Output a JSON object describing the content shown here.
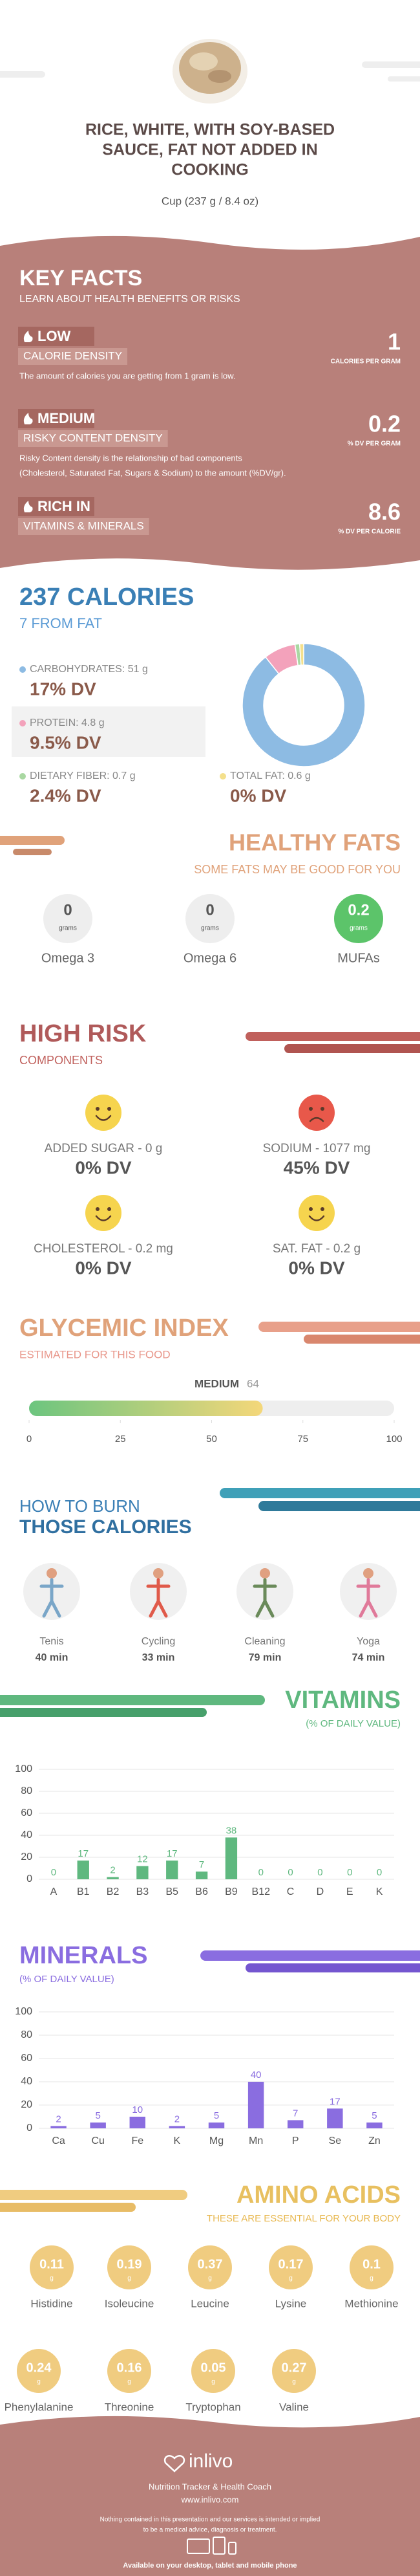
{
  "header": {
    "title_lines": [
      "RICE, WHITE, WITH SOY-BASED",
      "SAUCE, FAT NOT ADDED IN",
      "COOKING"
    ],
    "serving": "Cup (237 g / 8.4 oz)"
  },
  "key_facts": {
    "title": "KEY FACTS",
    "subtitle": "LEARN ABOUT HEALTH BENEFITS OR RISKS",
    "items": [
      {
        "level": "LOW",
        "name": "CALORIE DENSITY",
        "value": 1,
        "unit": "CALORIES PER GRAM",
        "description": [
          "The amount of calories you are getting from 1 gram is low."
        ]
      },
      {
        "level": "MEDIUM",
        "name": "RISKY CONTENT DENSITY",
        "value": 0.2,
        "unit": "% DV PER GRAM",
        "description": [
          "Risky Content density is the relationship of bad components",
          "(Cholesterol, Saturated Fat, Sugars & Sodium) to the amount (%DV/gr)."
        ]
      },
      {
        "level": "RICH IN",
        "name": "VITAMINS & MINERALS",
        "value": 8.6,
        "unit": "% DV PER CALORIE"
      }
    ]
  },
  "calories": {
    "title": "237 CALORIES",
    "subtitle": "7 FROM FAT"
  },
  "chart_data": [
    {
      "type": "pie",
      "categories": [
        "CARBOHYDRATES: 51 g",
        "PROTEIN: 4.8 g",
        "DIETARY FIBER: 0.7 g",
        "TOTAL FAT: 0.6 g"
      ],
      "values": [
        51,
        4.8,
        0.7,
        0.6
      ],
      "dv_labels": [
        "17% DV",
        "9.5% DV",
        "2.4% DV",
        "0% DV"
      ],
      "colors": [
        "#8dbbe3",
        "#f3a2bb",
        "#a9d8a2",
        "#f4e08c"
      ]
    },
    {
      "type": "bar",
      "title": "VITAMINS",
      "subtitle": "(% OF DAILY VALUE)",
      "categories": [
        "A",
        "B1",
        "B2",
        "B3",
        "B5",
        "B6",
        "B9",
        "B12",
        "C",
        "D",
        "E",
        "K"
      ],
      "values": [
        0,
        17,
        2,
        12,
        17,
        7,
        38,
        0,
        0,
        0,
        0,
        0
      ],
      "color": "#5fb87f",
      "ylim": [
        0,
        100
      ],
      "yticks": [
        0,
        20,
        40,
        60,
        80,
        100
      ],
      "grid": true
    },
    {
      "type": "bar",
      "title": "MINERALS",
      "subtitle": "(% OF DAILY VALUE)",
      "categories": [
        "Ca",
        "Cu",
        "Fe",
        "K",
        "Mg",
        "Mn",
        "P",
        "Se",
        "Zn"
      ],
      "values": [
        2,
        5,
        10,
        2,
        5,
        40,
        7,
        17,
        5
      ],
      "color": "#8a6de0",
      "ylim": [
        0,
        100
      ],
      "yticks": [
        0,
        20,
        40,
        60,
        80,
        100
      ],
      "grid": true
    }
  ],
  "healthy_fats": {
    "title": "HEALTHY FATS",
    "subtitle": "SOME FATS MAY BE GOOD FOR YOU",
    "items": [
      {
        "name": "Omega 3",
        "value": 0,
        "unit": "grams",
        "color": "#eeeeee",
        "text_color": "#555555"
      },
      {
        "name": "Omega 6",
        "value": 0,
        "unit": "grams",
        "color": "#eeeeee",
        "text_color": "#555555"
      },
      {
        "name": "MUFAs",
        "value": 0.2,
        "unit": "grams",
        "color": "#5cc46a",
        "text_color": "#ffffff"
      }
    ]
  },
  "high_risk": {
    "title": "HIGH RISK",
    "subtitle": "COMPONENTS",
    "items": [
      {
        "label": "ADDED SUGAR - 0 g",
        "dv": "0% DV",
        "risk": false
      },
      {
        "label": "SODIUM - 1077 mg",
        "dv": "45% DV",
        "risk": true
      },
      {
        "label": "CHOLESTEROL - 0.2 mg",
        "dv": "0% DV",
        "risk": false
      },
      {
        "label": "SAT. FAT - 0.2 g",
        "dv": "0% DV",
        "risk": false
      }
    ]
  },
  "glycemic": {
    "title": "GLYCEMIC INDEX",
    "subtitle": "ESTIMATED FOR THIS FOOD",
    "level": "MEDIUM",
    "value": 64,
    "xlim": [
      0,
      100
    ],
    "xticks": [
      0,
      25,
      50,
      75,
      100
    ]
  },
  "burn": {
    "title_lines": [
      "HOW TO BURN",
      "THOSE CALORIES"
    ],
    "activities": [
      {
        "name": "Tenis",
        "time": "40 min"
      },
      {
        "name": "Cycling",
        "time": "33 min"
      },
      {
        "name": "Cleaning",
        "time": "79 min"
      },
      {
        "name": "Yoga",
        "time": "74 min"
      }
    ]
  },
  "amino_acids": {
    "title": "AMINO ACIDS",
    "subtitle": "THESE ARE ESSENTIAL FOR YOUR BODY",
    "items": [
      {
        "name": "Histidine",
        "value": 0.11,
        "unit": "g"
      },
      {
        "name": "Isoleucine",
        "value": 0.19,
        "unit": "g"
      },
      {
        "name": "Leucine",
        "value": 0.37,
        "unit": "g"
      },
      {
        "name": "Lysine",
        "value": 0.17,
        "unit": "g"
      },
      {
        "name": "Methionine",
        "value": 0.1,
        "unit": "g"
      },
      {
        "name": "Phenylalanine",
        "value": 0.24,
        "unit": "g"
      },
      {
        "name": "Threonine",
        "value": 0.16,
        "unit": "g"
      },
      {
        "name": "Tryptophan",
        "value": 0.05,
        "unit": "g"
      },
      {
        "name": "Valine",
        "value": 0.27,
        "unit": "g"
      }
    ]
  },
  "footer": {
    "brand": "inlivo",
    "tagline": "Nutrition Tracker & Health Coach",
    "url": "www.inlivo.com",
    "disclaimer": [
      "Nothing contained in this presentation and our services is intended or implied",
      "to be a medical advice, diagnosis or treatment."
    ],
    "availability": "Available on your desktop, tablet and mobile phone"
  }
}
